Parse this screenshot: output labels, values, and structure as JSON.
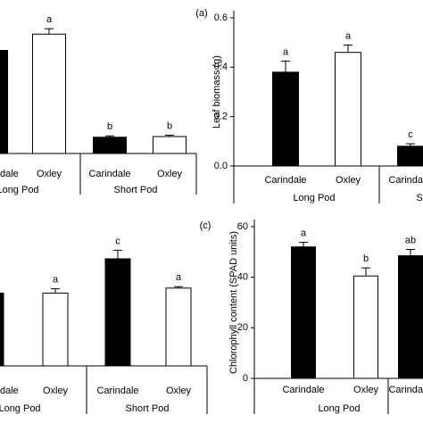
{
  "chart_data": [
    {
      "type": "bar",
      "categories": [
        "dale",
        "Oxley",
        "Carindale",
        "Oxley"
      ],
      "group_labels": [
        "Long Pod",
        "Short Pod"
      ],
      "values": [
        0.76,
        0.88,
        0.12,
        0.125
      ],
      "errors": [
        0,
        0.04,
        0.01,
        0.01
      ],
      "letters": [
        null,
        "a",
        "b",
        "b"
      ],
      "colors": [
        "#000000",
        "#ffffff",
        "#000000",
        "#ffffff"
      ],
      "ylim": [
        0,
        1
      ]
    },
    {
      "type": "bar",
      "panel_label": "(a)",
      "y_label": "Leaf biomass (g)",
      "categories": [
        "Carindale",
        "Oxley",
        "Carinda"
      ],
      "group_labels": [
        "Long Pod",
        "S"
      ],
      "values": [
        0.38,
        0.46,
        0.08
      ],
      "errors": [
        0.045,
        0.03,
        0.01
      ],
      "letters": [
        "a",
        "a",
        "c"
      ],
      "colors": [
        "#000000",
        "#ffffff",
        "#000000"
      ],
      "ylim": [
        0,
        0.6
      ],
      "yticks": [
        {
          "value": 0,
          "label": "0.0"
        },
        {
          "value": 0.2,
          "label": "0.2"
        },
        {
          "value": 0.4,
          "label": "0.4"
        },
        {
          "value": 0.6,
          "label": "0.6"
        }
      ]
    },
    {
      "type": "bar",
      "categories": [
        "dale",
        "Oxley",
        "Carindale",
        "Oxley"
      ],
      "group_labels": [
        "Long Pod",
        "Short Pod"
      ],
      "values": [
        0.51,
        0.51,
        0.75,
        0.545
      ],
      "errors": [
        0,
        0.03,
        0.06,
        0.01
      ],
      "letters": [
        null,
        "a",
        "c",
        "a"
      ],
      "colors": [
        "#000000",
        "#ffffff",
        "#000000",
        "#ffffff"
      ],
      "ylim": [
        0,
        1
      ]
    },
    {
      "type": "bar",
      "panel_label": "(c)",
      "y_label": "Chlorophyll content (SPAD units)",
      "categories": [
        "Carindale",
        "Oxley",
        "Carinda"
      ],
      "group_labels": [
        "Long Pod"
      ],
      "values": [
        52,
        40.5,
        48.5
      ],
      "errors": [
        1.8,
        3.2,
        2.5
      ],
      "letters": [
        "a",
        "b",
        "ab"
      ],
      "colors": [
        "#000000",
        "#ffffff",
        "#000000"
      ],
      "ylim": [
        0,
        60
      ],
      "yticks": [
        0,
        20,
        40,
        60
      ]
    }
  ]
}
